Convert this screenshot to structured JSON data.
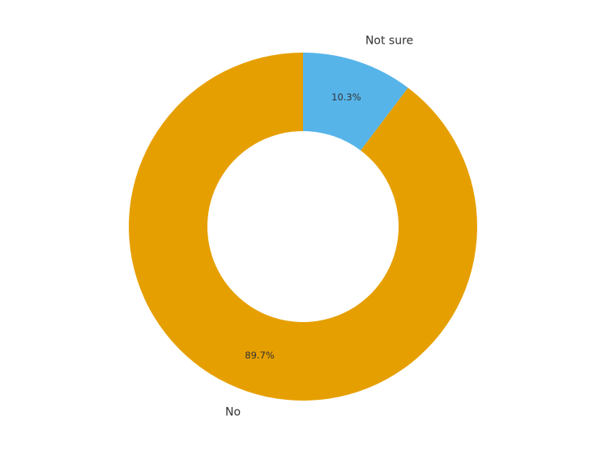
{
  "chart_data": {
    "type": "pie",
    "donut": true,
    "title": "",
    "slices": [
      {
        "label": "Not sure",
        "value": 10.3,
        "pct_label": "10.3%",
        "color": "#56B4E9"
      },
      {
        "label": "No",
        "value": 89.7,
        "pct_label": "89.7%",
        "color": "#E69F00"
      }
    ],
    "start": "top",
    "direction": "clockwise",
    "legend": "none"
  }
}
